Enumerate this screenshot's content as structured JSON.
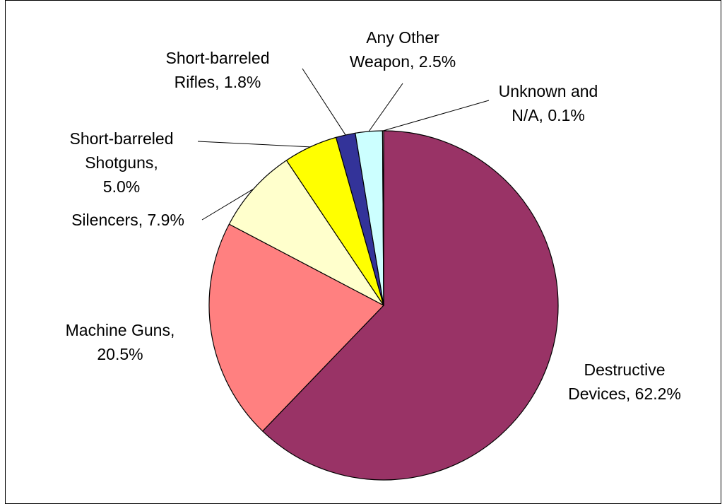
{
  "chart_data": {
    "type": "pie",
    "title": "",
    "border": true,
    "start_angle_deg": 0,
    "direction": "clockwise",
    "slices": [
      {
        "label_lines": [
          "Destructive",
          "Devices, 62.2%"
        ],
        "value": 62.2,
        "color": "#993366"
      },
      {
        "label_lines": [
          "Machine Guns,",
          "20.5%"
        ],
        "value": 20.5,
        "color": "#FF8080"
      },
      {
        "label_lines": [
          "Silencers, 7.9%"
        ],
        "value": 7.9,
        "color": "#FFFFCC"
      },
      {
        "label_lines": [
          "Short-barreled",
          "Shotguns,",
          "5.0%"
        ],
        "value": 5.0,
        "color": "#FFFF00"
      },
      {
        "label_lines": [
          "Short-barreled",
          "Rifles, 1.8%"
        ],
        "value": 1.8,
        "color": "#333399"
      },
      {
        "label_lines": [
          "Any Other",
          "Weapon, 2.5%"
        ],
        "value": 2.5,
        "color": "#CCFFFF"
      },
      {
        "label_lines": [
          "Unknown and",
          "N/A, 0.1%"
        ],
        "value": 0.1,
        "color": "#FFFFFF"
      }
    ]
  }
}
